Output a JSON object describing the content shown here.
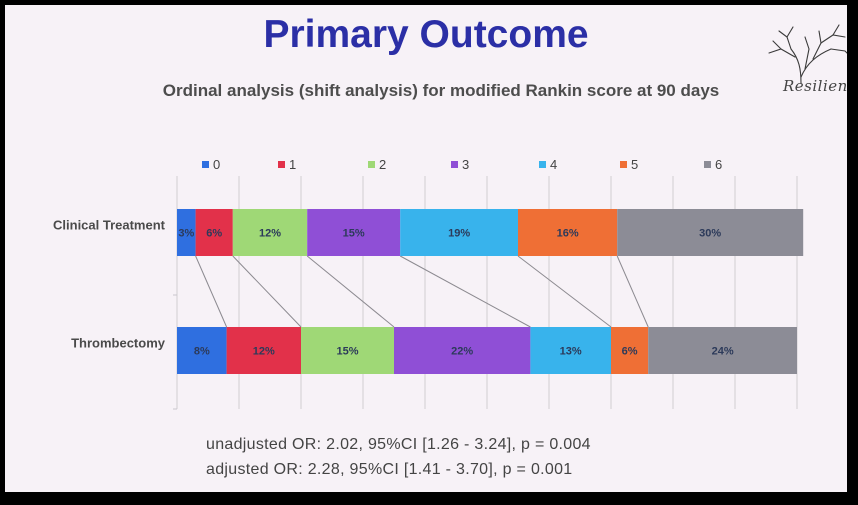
{
  "slide": {
    "title": "Primary Outcome",
    "subtitle": "Ordinal analysis (shift analysis) for modified Rankin score at 90 days",
    "logo_text": "Resilien",
    "stats": [
      "unadjusted  OR: 2.02, 95%CI [1.26 - 3.24], p = 0.004",
      "adjusted OR: 2.28, 95%CI [1.41 - 3.70], p = 0.001"
    ]
  },
  "chart_data": {
    "type": "bar",
    "orientation": "horizontal-stacked-100",
    "title": "Primary Outcome",
    "subtitle": "Ordinal analysis (shift analysis) for modified Rankin score at 90 days",
    "legend_position": "top",
    "grid": true,
    "xlim": [
      0,
      100
    ],
    "categories": [
      "Clinical Treatment",
      "Thrombectomy"
    ],
    "series": [
      {
        "name": "0",
        "color": "#2f6fe0",
        "values": [
          3,
          8
        ]
      },
      {
        "name": "1",
        "color": "#e2314a",
        "values": [
          6,
          12
        ]
      },
      {
        "name": "2",
        "color": "#9fd876",
        "values": [
          12,
          15
        ]
      },
      {
        "name": "3",
        "color": "#8f4fd6",
        "values": [
          15,
          22
        ]
      },
      {
        "name": "4",
        "color": "#38b3ec",
        "values": [
          19,
          13
        ]
      },
      {
        "name": "5",
        "color": "#ef6f35",
        "values": [
          16,
          6
        ]
      },
      {
        "name": "6",
        "color": "#8c8c96",
        "values": [
          30,
          24
        ]
      }
    ],
    "data_labels": [
      [
        "3%",
        "6%",
        "12%",
        "15%",
        "19%",
        "16%",
        "30%"
      ],
      [
        "8%",
        "12%",
        "15%",
        "22%",
        "13%",
        "6%",
        "24%"
      ]
    ]
  }
}
